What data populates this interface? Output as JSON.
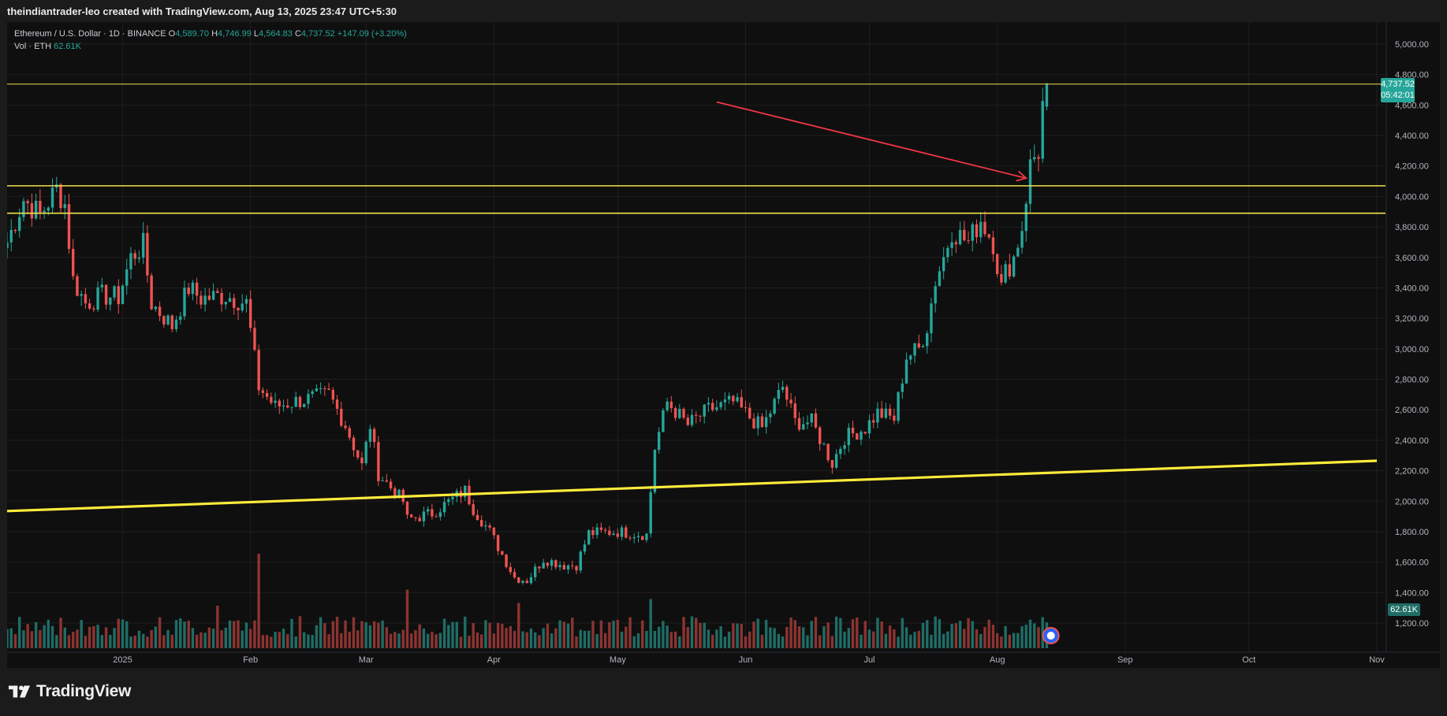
{
  "header": {
    "attribution": "theindiantrader-leo created with TradingView.com, Aug 13, 2025 23:47 UTC+5:30"
  },
  "legend": {
    "symbol": "Ethereum / U.S. Dollar · 1D · BINANCE",
    "o_label": "O",
    "o_value": "4,589.70",
    "h_label": "H",
    "h_value": "4,746.99",
    "l_label": "L",
    "l_value": "4,564.83",
    "c_label": "C",
    "c_value": "4,737.52",
    "change": "+147.09 (+3.20%)",
    "vol_label": "Vol · ETH",
    "vol_value": "62.61K"
  },
  "price_tag": {
    "price": "4,737.52",
    "countdown": "05:42:01"
  },
  "volume_tag": "62.61K",
  "brand": {
    "name": "TradingView"
  },
  "colors": {
    "up": "#26a69a",
    "down": "#ef5350",
    "up_volume": "#1f6d66",
    "down_volume": "#8c3431",
    "level_line": "#f1e14e",
    "arrow": "#f23645",
    "background": "#0f0f0f",
    "grid": "#1f1f1f",
    "axis_text": "#b2b5be"
  },
  "chart_data": {
    "type": "candlestick",
    "symbol": "ETHUSD",
    "interval": "1D",
    "ylim": [
      1100,
      5150
    ],
    "y_ticks": [
      "5,000.00",
      "4,800.00",
      "4,600.00",
      "4,400.00",
      "4,200.00",
      "4,000.00",
      "3,800.00",
      "3,600.00",
      "3,400.00",
      "3,200.00",
      "3,000.00",
      "2,800.00",
      "2,600.00",
      "2,400.00",
      "2,200.00",
      "2,000.00",
      "1,800.00",
      "1,600.00",
      "1,400.00",
      "1,200.00"
    ],
    "x_ticks": [
      {
        "label": "2025",
        "date": "2025-01-01"
      },
      {
        "label": "Feb",
        "date": "2025-02-01"
      },
      {
        "label": "Mar",
        "date": "2025-03-01"
      },
      {
        "label": "Apr",
        "date": "2025-04-01"
      },
      {
        "label": "May",
        "date": "2025-05-01"
      },
      {
        "label": "Jun",
        "date": "2025-06-01"
      },
      {
        "label": "Jul",
        "date": "2025-07-01"
      },
      {
        "label": "Aug",
        "date": "2025-08-01"
      },
      {
        "label": "Sep",
        "date": "2025-09-01"
      },
      {
        "label": "Oct",
        "date": "2025-10-01"
      },
      {
        "label": "Nov",
        "date": "2025-11-01"
      }
    ],
    "x_range": [
      "2024-12-04",
      "2025-11-01"
    ],
    "anchors": [
      [
        "2024-12-04",
        3700
      ],
      [
        "2024-12-08",
        3980
      ],
      [
        "2024-12-12",
        3880
      ],
      [
        "2024-12-16",
        4050
      ],
      [
        "2024-12-18",
        3950
      ],
      [
        "2024-12-20",
        3450
      ],
      [
        "2024-12-23",
        3300
      ],
      [
        "2024-12-27",
        3350
      ],
      [
        "2024-12-31",
        3340
      ],
      [
        "2025-01-03",
        3600
      ],
      [
        "2025-01-06",
        3680
      ],
      [
        "2025-01-08",
        3300
      ],
      [
        "2025-01-13",
        3150
      ],
      [
        "2025-01-17",
        3400
      ],
      [
        "2025-01-20",
        3330
      ],
      [
        "2025-01-26",
        3350
      ],
      [
        "2025-01-31",
        3300
      ],
      [
        "2025-02-03",
        2750
      ],
      [
        "2025-02-07",
        2620
      ],
      [
        "2025-02-11",
        2650
      ],
      [
        "2025-02-20",
        2700
      ],
      [
        "2025-02-24",
        2500
      ],
      [
        "2025-02-28",
        2230
      ],
      [
        "2025-03-02",
        2500
      ],
      [
        "2025-03-04",
        2180
      ],
      [
        "2025-03-10",
        2000
      ],
      [
        "2025-03-11",
        1880
      ],
      [
        "2025-03-17",
        1920
      ],
      [
        "2025-03-25",
        2070
      ],
      [
        "2025-03-27",
        1950
      ],
      [
        "2025-03-31",
        1800
      ],
      [
        "2025-04-06",
        1500
      ],
      [
        "2025-04-09",
        1480
      ],
      [
        "2025-04-13",
        1620
      ],
      [
        "2025-04-18",
        1580
      ],
      [
        "2025-04-21",
        1580
      ],
      [
        "2025-04-24",
        1790
      ],
      [
        "2025-05-01",
        1800
      ],
      [
        "2025-05-08",
        1780
      ],
      [
        "2025-05-10",
        2350
      ],
      [
        "2025-05-13",
        2650
      ],
      [
        "2025-05-18",
        2500
      ],
      [
        "2025-05-23",
        2600
      ],
      [
        "2025-05-29",
        2650
      ],
      [
        "2025-06-02",
        2550
      ],
      [
        "2025-06-05",
        2480
      ],
      [
        "2025-06-10",
        2750
      ],
      [
        "2025-06-13",
        2520
      ],
      [
        "2025-06-17",
        2520
      ],
      [
        "2025-06-22",
        2250
      ],
      [
        "2025-06-25",
        2420
      ],
      [
        "2025-06-30",
        2480
      ],
      [
        "2025-07-03",
        2580
      ],
      [
        "2025-07-07",
        2540
      ],
      [
        "2025-07-10",
        2950
      ],
      [
        "2025-07-13",
        3000
      ],
      [
        "2025-07-15",
        3150
      ],
      [
        "2025-07-17",
        3450
      ],
      [
        "2025-07-19",
        3600
      ],
      [
        "2025-07-21",
        3780
      ],
      [
        "2025-07-25",
        3700
      ],
      [
        "2025-07-28",
        3850
      ],
      [
        "2025-07-31",
        3700
      ],
      [
        "2025-08-02",
        3400
      ],
      [
        "2025-08-03",
        3500
      ],
      [
        "2025-08-05",
        3600
      ],
      [
        "2025-08-07",
        3800
      ],
      [
        "2025-08-09",
        4200
      ],
      [
        "2025-08-10",
        4260
      ],
      [
        "2025-08-11",
        4300
      ],
      [
        "2025-08-12",
        4600
      ],
      [
        "2025-08-13",
        4737.52
      ]
    ],
    "last_candle": {
      "date": "2025-08-13",
      "open": 4589.7,
      "high": 4746.99,
      "low": 4564.83,
      "close": 4737.52
    },
    "last_volume": "62.61K",
    "volume_spikes": [
      [
        "2025-02-03",
        1.0
      ],
      [
        "2025-03-11",
        0.62
      ],
      [
        "2025-04-07",
        0.48
      ],
      [
        "2025-05-09",
        0.52
      ],
      [
        "2025-01-24",
        0.45
      ],
      [
        "2025-08-12",
        0.33
      ]
    ],
    "horizontal_levels": [
      4737.52,
      4070,
      3890
    ],
    "trendline": {
      "from": [
        "2024-12-04",
        1935
      ],
      "to": [
        "2025-11-01",
        2265
      ]
    },
    "arrow": {
      "from": [
        "2025-05-25",
        4620
      ],
      "to": [
        "2025-08-08",
        4120
      ]
    }
  }
}
